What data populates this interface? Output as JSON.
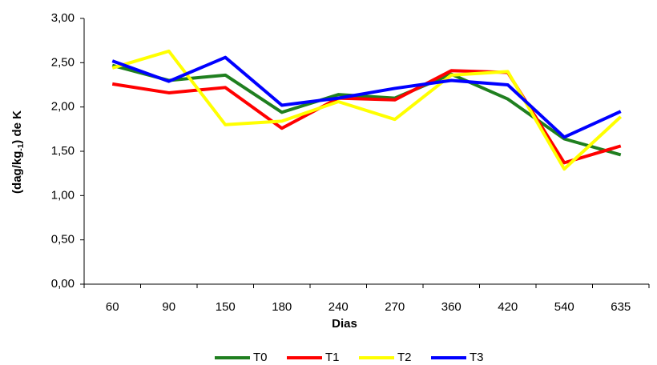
{
  "chart_data": {
    "type": "line",
    "x_label": "Dias",
    "y_label": [
      "(dag/kg",
      "-1",
      ") de K"
    ],
    "categories": [
      "60",
      "90",
      "150",
      "180",
      "240",
      "270",
      "360",
      "420",
      "540",
      "635"
    ],
    "series": [
      {
        "name": "T0",
        "color": "#1f7f1f",
        "values": [
          2.47,
          2.3,
          2.36,
          1.94,
          2.14,
          2.1,
          2.37,
          2.09,
          1.64,
          1.46
        ]
      },
      {
        "name": "T1",
        "color": "#ff0000",
        "values": [
          2.26,
          2.16,
          2.22,
          1.76,
          2.1,
          2.08,
          2.41,
          2.39,
          1.37,
          1.56
        ]
      },
      {
        "name": "T2",
        "color": "#ffff00",
        "values": [
          2.44,
          2.63,
          1.8,
          1.84,
          2.06,
          1.86,
          2.36,
          2.4,
          1.3,
          1.89
        ]
      },
      {
        "name": "T3",
        "color": "#0000ff",
        "values": [
          2.52,
          2.29,
          2.56,
          2.02,
          2.1,
          2.21,
          2.3,
          2.25,
          1.66,
          1.95
        ]
      }
    ],
    "ylim": [
      0,
      3
    ],
    "yticks": [
      {
        "value": 0,
        "label": "0,00"
      },
      {
        "value": 0.5,
        "label": "0,50"
      },
      {
        "value": 1,
        "label": "1,00"
      },
      {
        "value": 1.5,
        "label": "1,50"
      },
      {
        "value": 2,
        "label": "2,00"
      },
      {
        "value": 2.5,
        "label": "2,50"
      },
      {
        "value": 3,
        "label": "3,00"
      }
    ],
    "grid": false,
    "legend": "bottom"
  }
}
